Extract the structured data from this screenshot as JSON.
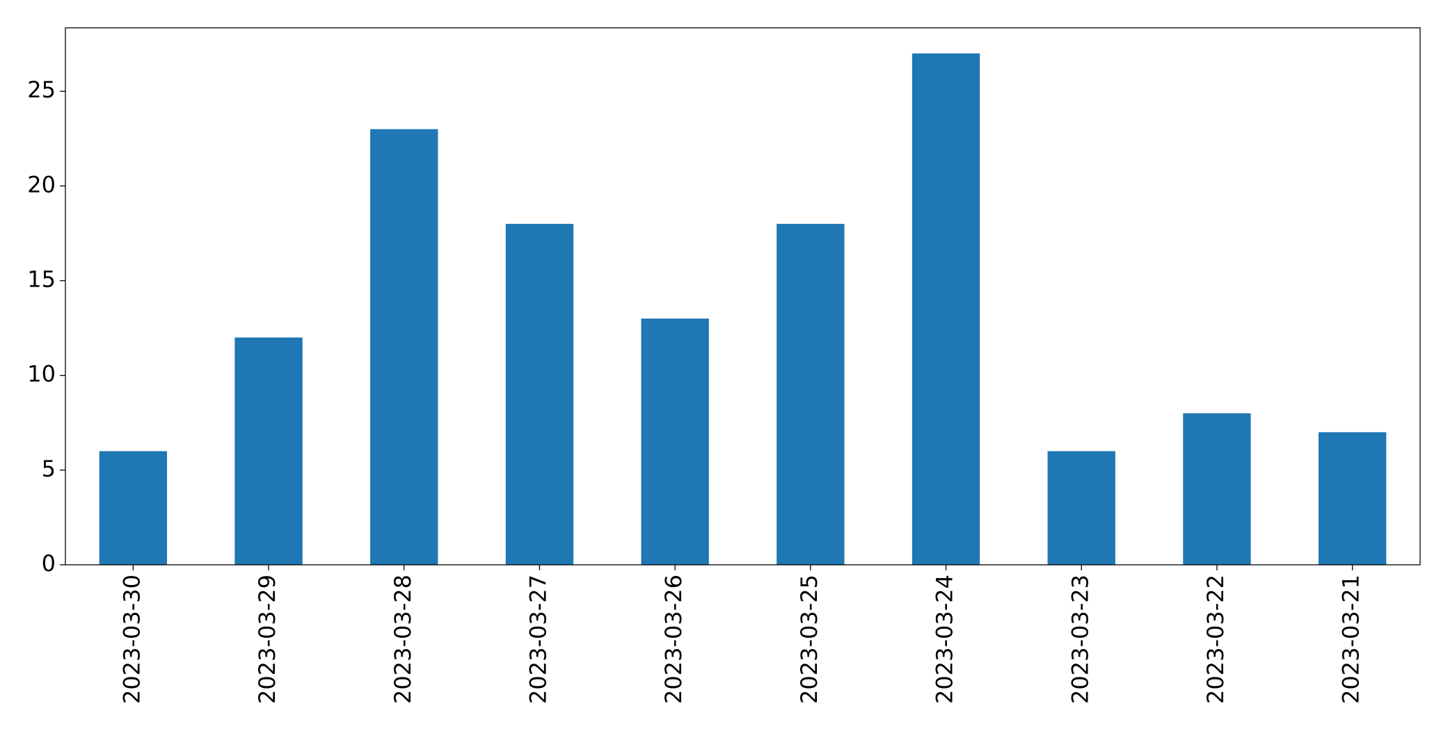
{
  "chart_data": {
    "type": "bar",
    "categories": [
      "2023-03-30",
      "2023-03-29",
      "2023-03-28",
      "2023-03-27",
      "2023-03-26",
      "2023-03-25",
      "2023-03-24",
      "2023-03-23",
      "2023-03-22",
      "2023-03-21"
    ],
    "values": [
      6,
      12,
      23,
      18,
      13,
      18,
      27,
      6,
      8,
      7
    ],
    "color": "#1f77b4",
    "ylim": [
      0,
      28.35
    ],
    "yticks": [
      0,
      5,
      10,
      15,
      20,
      25
    ],
    "grid": false
  }
}
